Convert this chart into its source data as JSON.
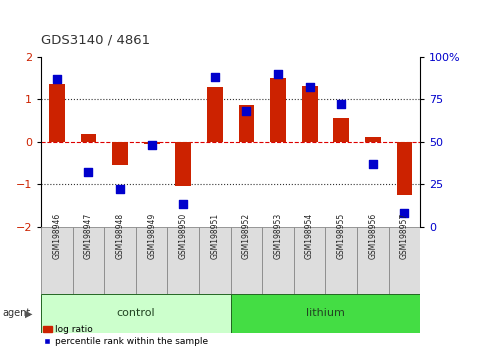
{
  "title": "GDS3140 / 4861",
  "samples": [
    "GSM198946",
    "GSM198947",
    "GSM198948",
    "GSM198949",
    "GSM198950",
    "GSM198951",
    "GSM198952",
    "GSM198953",
    "GSM198954",
    "GSM198955",
    "GSM198956",
    "GSM198957"
  ],
  "log_ratio": [
    1.35,
    0.18,
    -0.55,
    -0.05,
    -1.05,
    1.28,
    0.85,
    1.5,
    1.3,
    0.55,
    0.12,
    -1.25
  ],
  "percentile_rank": [
    87,
    32,
    22,
    48,
    13,
    88,
    68,
    90,
    82,
    72,
    37,
    8
  ],
  "groups": [
    {
      "label": "control",
      "start": 0,
      "end": 6,
      "color": "#ccffcc"
    },
    {
      "label": "lithium",
      "start": 6,
      "end": 12,
      "color": "#44dd44"
    }
  ],
  "agent_label": "agent",
  "ylim": [
    -2,
    2
  ],
  "y2lim": [
    0,
    100
  ],
  "yticks": [
    -2,
    -1,
    0,
    1,
    2
  ],
  "y2ticks": [
    0,
    25,
    50,
    75,
    100
  ],
  "y2ticklabels": [
    "0",
    "25",
    "50",
    "75",
    "100%"
  ],
  "hline_color": "#dd0000",
  "dotted_color": "#333333",
  "bar_color": "#cc2200",
  "dot_color": "#0000cc",
  "legend_bar_label": "log ratio",
  "legend_dot_label": "percentile rank within the sample",
  "bg_color": "#ffffff",
  "plot_bg_color": "#ffffff",
  "bar_width": 0.5,
  "dot_size": 40
}
